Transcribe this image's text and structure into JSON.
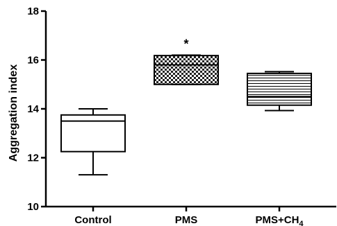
{
  "chart_data": {
    "type": "box",
    "ylabel": "Aggregation index",
    "ylim": [
      10,
      18
    ],
    "yticks": [
      10,
      12,
      14,
      16,
      18
    ],
    "categories": [
      {
        "label": "Control",
        "sub": "",
        "pattern": "none"
      },
      {
        "label": "PMS",
        "sub": "",
        "pattern": "checker"
      },
      {
        "label": "PMS+CH",
        "sub": "4",
        "pattern": "hlines"
      }
    ],
    "boxes": [
      {
        "min": 11.3,
        "q1": 12.25,
        "median": 13.5,
        "q3": 13.75,
        "max": 14.0
      },
      {
        "min": 15.0,
        "q1": 15.0,
        "median": 15.8,
        "q3": 16.18,
        "max": 16.2
      },
      {
        "min": 13.93,
        "q1": 14.15,
        "median": 14.5,
        "q3": 15.45,
        "max": 15.52
      }
    ],
    "annotations": [
      {
        "category_index": 1,
        "text": "*"
      }
    ]
  }
}
